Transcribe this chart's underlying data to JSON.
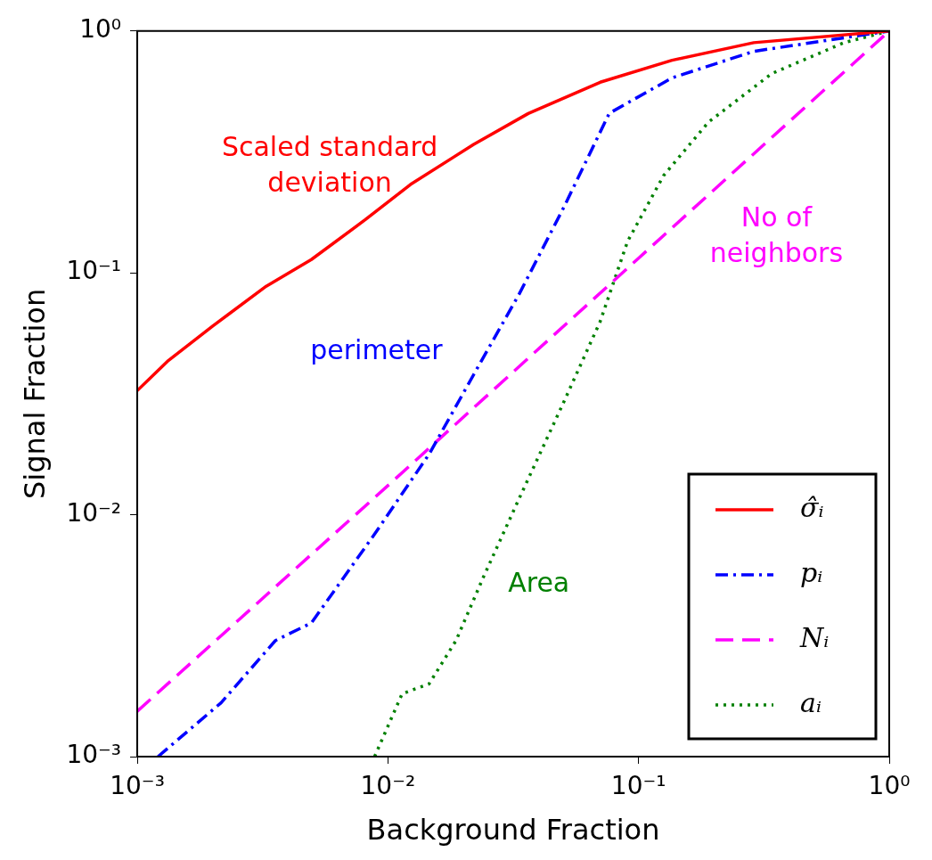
{
  "chart_data": {
    "type": "line",
    "xlabel": "Background Fraction",
    "ylabel": "Signal Fraction",
    "log": "xy",
    "grid": false,
    "legend": "bottom right",
    "marker": "none",
    "xlim": [
      0.001,
      1
    ],
    "ylim": [
      0.001,
      1
    ],
    "xticks": [
      {
        "value": 0.001,
        "label": "10⁻³"
      },
      {
        "value": 0.01,
        "label": "10⁻²"
      },
      {
        "value": 0.1,
        "label": "10⁻¹"
      },
      {
        "value": 1,
        "label": "10⁰"
      }
    ],
    "yticks": [
      {
        "value": 0.001,
        "label": "10⁻³"
      },
      {
        "value": 0.01,
        "label": "10⁻²"
      },
      {
        "value": 0.1,
        "label": "10⁻¹"
      },
      {
        "value": 1,
        "label": "10⁰"
      }
    ],
    "series": [
      {
        "name": "σ̂ᵢ",
        "color": "#ff0000",
        "line_style": "solid",
        "x": [
          0.001,
          0.00132,
          0.002,
          0.00327,
          0.00495,
          0.00813,
          0.0123,
          0.022,
          0.0363,
          0.0703,
          0.136,
          0.288,
          1
        ],
        "values": [
          0.0326,
          0.0431,
          0.0603,
          0.0881,
          0.1135,
          0.166,
          0.232,
          0.34,
          0.456,
          0.614,
          0.757,
          0.895,
          1
        ]
      },
      {
        "name": "pᵢ",
        "color": "#0000ff",
        "line_style": "dashdot",
        "x": [
          0.00121,
          0.00216,
          0.00356,
          0.00495,
          0.00885,
          0.0146,
          0.022,
          0.0333,
          0.0505,
          0.0764,
          0.136,
          0.288,
          1
        ],
        "values": [
          0.001,
          0.00167,
          0.00302,
          0.00357,
          0.00832,
          0.0178,
          0.038,
          0.0813,
          0.188,
          0.457,
          0.64,
          0.824,
          1
        ]
      },
      {
        "name": "Nᵢ",
        "color": "#ff00ff",
        "line_style": "dashed",
        "x": [
          0.001,
          0.01,
          0.1,
          1
        ],
        "values": [
          0.00154,
          0.0132,
          0.115,
          1
        ]
      },
      {
        "name": "aᵢ",
        "color": "#008000",
        "line_style": "dotted",
        "x": [
          0.00885,
          0.0114,
          0.0146,
          0.0187,
          0.024,
          0.0333,
          0.0505,
          0.0703,
          0.0904,
          0.126,
          0.19,
          0.34,
          0.66,
          1
        ],
        "values": [
          0.001,
          0.00182,
          0.002,
          0.00302,
          0.0055,
          0.0116,
          0.0295,
          0.063,
          0.135,
          0.253,
          0.42,
          0.667,
          0.895,
          1
        ]
      }
    ],
    "annotations": [
      "Scaled standard\ndeviation",
      "perimeter",
      "No of\nneighbors",
      "Area"
    ]
  }
}
